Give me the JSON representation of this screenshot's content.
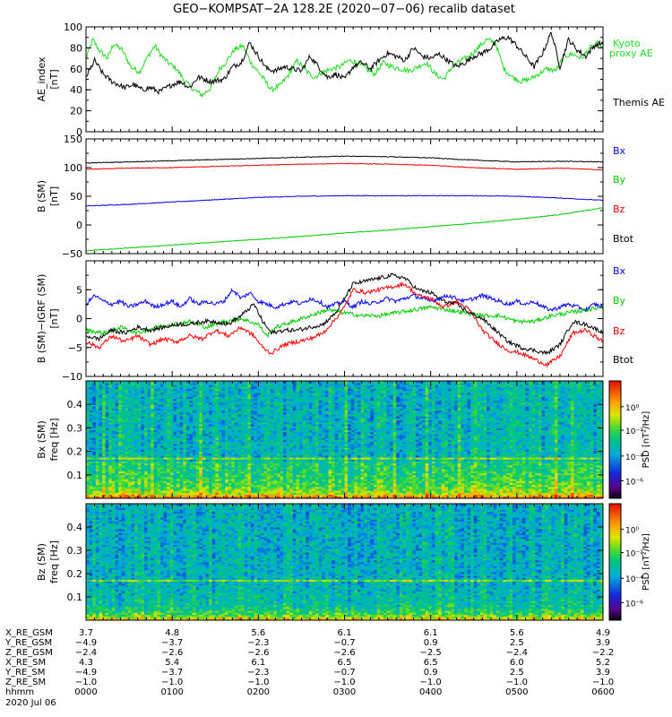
{
  "title": "GEO−KOMPSAT−2A 128.2E (2020−07−06) recalib dataset",
  "colors": {
    "black": "#000000",
    "blue": "#0000ff",
    "green": "#00cc00",
    "red": "#ff0000",
    "ae_green": "#22dd22"
  },
  "chart_data": [
    {
      "type": "line",
      "ylabel": "AE_index",
      "yunit": "[nT]",
      "xlim": [
        0,
        6
      ],
      "ylim": [
        0,
        100
      ],
      "yticks": [
        "0",
        "20",
        "40",
        "60",
        "80",
        "100"
      ],
      "yticks_v": [
        0,
        20,
        40,
        60,
        80,
        100
      ],
      "legend": [
        "Kyoto",
        "proxy AE",
        "Themis AE"
      ],
      "series": [
        {
          "name": "Kyoto proxy AE",
          "color": "#22dd22",
          "x": [
            0,
            0.08,
            0.15,
            0.25,
            0.32,
            0.42,
            0.52,
            0.62,
            0.72,
            0.8,
            0.88,
            0.95,
            1.05,
            1.15,
            1.25,
            1.35,
            1.45,
            1.55,
            1.62,
            1.72,
            1.82,
            1.92,
            2.05,
            2.15,
            2.25,
            2.35,
            2.45,
            2.55,
            2.65,
            2.75,
            2.85,
            2.95,
            3.05,
            3.15,
            3.25,
            3.35,
            3.45,
            3.55,
            3.65,
            3.75,
            3.85,
            3.95,
            4.05,
            4.15,
            4.25,
            4.35,
            4.45,
            4.55,
            4.65,
            4.75,
            4.85,
            4.95,
            5.05,
            5.15,
            5.25,
            5.35,
            5.45,
            5.55,
            5.65,
            5.75,
            5.85,
            5.95,
            6.0
          ],
          "y": [
            70,
            88,
            78,
            70,
            84,
            78,
            62,
            57,
            72,
            82,
            72,
            66,
            60,
            48,
            40,
            35,
            42,
            60,
            66,
            78,
            82,
            65,
            52,
            40,
            44,
            54,
            68,
            58,
            52,
            57,
            60,
            62,
            68,
            66,
            60,
            55,
            66,
            62,
            60,
            58,
            62,
            66,
            55,
            50,
            62,
            68,
            72,
            80,
            88,
            85,
            60,
            52,
            48,
            50,
            55,
            60,
            58,
            72,
            74,
            70,
            80,
            85,
            78
          ]
        },
        {
          "name": "Themis AE",
          "color": "#000000",
          "x": [
            0,
            0.1,
            0.2,
            0.3,
            0.45,
            0.55,
            0.65,
            0.75,
            0.85,
            1.0,
            1.1,
            1.2,
            1.3,
            1.45,
            1.6,
            1.7,
            1.8,
            1.9,
            2.0,
            2.1,
            2.2,
            2.3,
            2.4,
            2.5,
            2.6,
            2.7,
            2.8,
            2.9,
            3.0,
            3.1,
            3.2,
            3.3,
            3.4,
            3.5,
            3.6,
            3.7,
            3.8,
            3.9,
            4.0,
            4.1,
            4.2,
            4.3,
            4.4,
            4.5,
            4.6,
            4.7,
            4.8,
            4.9,
            5.0,
            5.1,
            5.2,
            5.3,
            5.4,
            5.5,
            5.6,
            5.7,
            5.8,
            5.9,
            6.0
          ],
          "y": [
            52,
            68,
            55,
            48,
            42,
            45,
            40,
            42,
            38,
            45,
            48,
            42,
            52,
            48,
            50,
            62,
            66,
            85,
            72,
            60,
            58,
            62,
            60,
            58,
            72,
            62,
            52,
            55,
            50,
            62,
            66,
            60,
            68,
            75,
            72,
            68,
            80,
            72,
            70,
            74,
            68,
            62,
            66,
            72,
            75,
            80,
            88,
            90,
            82,
            72,
            62,
            75,
            95,
            62,
            88,
            78,
            72,
            82,
            85
          ]
        }
      ]
    },
    {
      "type": "line",
      "ylabel": "B (SM)",
      "yunit": "[nT]",
      "xlim": [
        0,
        6
      ],
      "ylim": [
        -50,
        150
      ],
      "yticks": [
        "−50",
        "0",
        "50",
        "100",
        "150"
      ],
      "yticks_v": [
        -50,
        0,
        50,
        100,
        150
      ],
      "legend": [
        "Bx",
        "By",
        "Bz",
        "Btot"
      ],
      "series": [
        {
          "name": "Bx",
          "color": "#0000ff",
          "x": [
            0,
            0.5,
            1,
            1.5,
            2,
            2.5,
            3,
            3.5,
            4,
            4.5,
            5,
            5.5,
            6
          ],
          "y": [
            33,
            36,
            40,
            44,
            48,
            50,
            51,
            51,
            51,
            51,
            50,
            47,
            43
          ]
        },
        {
          "name": "By",
          "color": "#00cc00",
          "x": [
            0,
            0.5,
            1,
            1.5,
            2,
            2.5,
            3,
            3.5,
            4,
            4.5,
            5,
            5.5,
            6
          ],
          "y": [
            -45,
            -40,
            -35,
            -30,
            -25,
            -20,
            -14,
            -9,
            -3,
            3,
            10,
            18,
            30
          ]
        },
        {
          "name": "Bz",
          "color": "#ff0000",
          "x": [
            0,
            0.5,
            1,
            1.5,
            2,
            2.5,
            3,
            3.5,
            4,
            4.5,
            5,
            5.5,
            6
          ],
          "y": [
            97,
            99,
            100,
            102,
            104,
            106,
            107,
            106,
            104,
            100,
            97,
            99,
            96
          ]
        },
        {
          "name": "Btot",
          "color": "#000000",
          "x": [
            0,
            0.5,
            1,
            1.5,
            2,
            2.5,
            3,
            3.5,
            4,
            4.5,
            5,
            5.5,
            6
          ],
          "y": [
            108,
            110,
            112,
            114,
            116,
            118,
            120,
            119,
            117,
            113,
            110,
            111,
            110
          ]
        }
      ]
    },
    {
      "type": "line",
      "ylabel": "B (SM)−IGRF (SM)",
      "yunit": "[nT]",
      "xlim": [
        0,
        6
      ],
      "ylim": [
        -10,
        10
      ],
      "yticks": [
        "−10",
        "−5",
        "0",
        "5"
      ],
      "yticks_v": [
        -10,
        -5,
        0,
        5
      ],
      "legend": [
        "Bx",
        "By",
        "Bz",
        "Btot"
      ],
      "series": [
        {
          "name": "Bx",
          "color": "#0000ff",
          "x": [
            0,
            0.1,
            0.2,
            0.3,
            0.4,
            0.5,
            0.6,
            0.7,
            0.8,
            0.9,
            1.0,
            1.1,
            1.2,
            1.3,
            1.4,
            1.5,
            1.6,
            1.7,
            1.8,
            1.9,
            2.0,
            2.1,
            2.2,
            2.3,
            2.4,
            2.5,
            2.6,
            2.7,
            2.8,
            2.9,
            3.0,
            3.1,
            3.2,
            3.3,
            3.4,
            3.5,
            3.6,
            3.7,
            3.8,
            3.9,
            4.0,
            4.1,
            4.2,
            4.3,
            4.4,
            4.5,
            4.6,
            4.7,
            4.8,
            4.9,
            5.0,
            5.1,
            5.2,
            5.3,
            5.4,
            5.5,
            5.6,
            5.7,
            5.8,
            5.9,
            6.0
          ],
          "y": [
            2.5,
            4.0,
            3.0,
            2.5,
            3.0,
            2.0,
            2.5,
            3.0,
            2.0,
            2.5,
            3.0,
            2.0,
            3.5,
            2.5,
            3.0,
            2.5,
            3.0,
            5.0,
            3.5,
            4.5,
            3.0,
            2.5,
            2.0,
            2.5,
            3.0,
            2.5,
            3.5,
            3.0,
            2.0,
            2.5,
            3.0,
            2.0,
            3.0,
            2.5,
            3.0,
            3.5,
            3.0,
            3.5,
            4.0,
            3.5,
            3.0,
            3.5,
            4.0,
            3.5,
            3.0,
            3.5,
            4.0,
            3.5,
            3.0,
            2.5,
            3.0,
            2.5,
            3.0,
            2.0,
            1.5,
            2.0,
            2.5,
            2.0,
            1.5,
            2.5,
            2.0
          ]
        },
        {
          "name": "By",
          "color": "#00cc00",
          "x": [
            0,
            0.2,
            0.4,
            0.6,
            0.8,
            1.0,
            1.2,
            1.4,
            1.6,
            1.8,
            2.0,
            2.1,
            2.2,
            2.4,
            2.6,
            2.8,
            3.0,
            3.2,
            3.4,
            3.6,
            3.8,
            4.0,
            4.2,
            4.4,
            4.6,
            4.8,
            5.0,
            5.2,
            5.4,
            5.6,
            5.8,
            6.0
          ],
          "y": [
            -2.0,
            -2.5,
            -1.5,
            -2.5,
            -1.5,
            -1.0,
            -0.5,
            -1.5,
            -0.5,
            0.0,
            -1.0,
            -3.0,
            -1.5,
            -0.5,
            0.5,
            1.5,
            1.0,
            0.5,
            0.5,
            1.0,
            1.5,
            2.0,
            1.5,
            1.0,
            0.5,
            0.5,
            -0.5,
            -0.5,
            0.5,
            1.0,
            1.5,
            2.0
          ]
        },
        {
          "name": "Bz",
          "color": "#ff0000",
          "x": [
            0,
            0.15,
            0.3,
            0.45,
            0.6,
            0.75,
            0.9,
            1.05,
            1.2,
            1.35,
            1.5,
            1.65,
            1.8,
            1.95,
            2.05,
            2.15,
            2.3,
            2.45,
            2.6,
            2.75,
            2.9,
            3.0,
            3.1,
            3.25,
            3.4,
            3.55,
            3.7,
            3.85,
            4.0,
            4.15,
            4.3,
            4.45,
            4.6,
            4.75,
            4.9,
            5.05,
            5.2,
            5.35,
            5.5,
            5.65,
            5.8,
            5.95,
            6.0
          ],
          "y": [
            -4.0,
            -5.0,
            -3.0,
            -4.0,
            -3.0,
            -4.5,
            -3.5,
            -4.0,
            -3.0,
            -3.5,
            -2.0,
            -3.0,
            -1.5,
            -3.0,
            -5.0,
            -6.0,
            -4.5,
            -4.0,
            -3.5,
            -2.5,
            0.0,
            2.0,
            5.0,
            4.5,
            5.0,
            5.5,
            6.0,
            4.0,
            3.5,
            2.0,
            3.0,
            1.5,
            -2.0,
            -4.0,
            -5.5,
            -6.0,
            -7.0,
            -8.0,
            -6.5,
            -2.5,
            -2.0,
            -3.5,
            -4.0
          ]
        },
        {
          "name": "Btot",
          "color": "#000000",
          "x": [
            0,
            0.15,
            0.3,
            0.45,
            0.6,
            0.75,
            0.9,
            1.05,
            1.2,
            1.35,
            1.5,
            1.65,
            1.8,
            1.95,
            2.05,
            2.15,
            2.3,
            2.45,
            2.6,
            2.75,
            2.9,
            3.0,
            3.1,
            3.25,
            3.4,
            3.55,
            3.7,
            3.85,
            4.0,
            4.15,
            4.3,
            4.45,
            4.6,
            4.75,
            4.9,
            5.05,
            5.2,
            5.35,
            5.5,
            5.65,
            5.8,
            5.95,
            6.0
          ],
          "y": [
            -3.0,
            -3.5,
            -2.0,
            -2.5,
            -1.5,
            -2.0,
            -1.5,
            -1.0,
            -1.0,
            -0.5,
            -0.5,
            -1.0,
            0.5,
            2.5,
            -0.5,
            -2.5,
            -2.0,
            -2.0,
            -1.5,
            -1.0,
            1.0,
            3.5,
            6.0,
            6.5,
            7.0,
            7.5,
            7.0,
            5.0,
            4.5,
            3.0,
            2.5,
            1.0,
            0.0,
            -2.0,
            -4.0,
            -5.0,
            -5.5,
            -6.0,
            -4.5,
            -0.5,
            -1.0,
            -2.0,
            -2.5
          ]
        }
      ]
    },
    {
      "type": "heatmap",
      "ylabel": "Bx (SM)",
      "yunit": "freq [Hz]",
      "ylim": [
        0,
        0.5
      ],
      "yticks": [
        "0.1",
        "0.2",
        "0.3",
        "0.4"
      ],
      "yticks_v": [
        0.1,
        0.2,
        0.3,
        0.4
      ],
      "colorbar_label": "PSD [nT²/Hz]",
      "colorbar_ticks": [
        "10⁰",
        "10⁻²",
        "10⁻⁴",
        "10⁻⁶"
      ]
    },
    {
      "type": "heatmap",
      "ylabel": "Bz (SM)",
      "yunit": "freq [Hz]",
      "ylim": [
        0,
        0.5
      ],
      "yticks": [
        "0.1",
        "0.2",
        "0.3",
        "0.4"
      ],
      "yticks_v": [
        0.1,
        0.2,
        0.3,
        0.4
      ],
      "colorbar_label": "PSD [nT²/Hz]",
      "colorbar_ticks": [
        "10⁰",
        "10⁻²",
        "10⁻⁴",
        "10⁻⁶"
      ]
    }
  ],
  "ephemeris": {
    "row_labels": [
      "X_RE_GSM",
      "Y_RE_GSM",
      "Z_RE_GSM",
      "X_RE_SM",
      "Y_RE_SM",
      "Z_RE_SM",
      "hhmm",
      "2020 Jul 06"
    ],
    "columns": [
      [
        "3.7",
        "−4.9",
        "−2.4",
        "4.3",
        "−4.9",
        "−1.0",
        "0000"
      ],
      [
        "4.8",
        "−3.7",
        "−2.6",
        "5.4",
        "−3.7",
        "−1.0",
        "0100"
      ],
      [
        "5.6",
        "−2.3",
        "−2.6",
        "6.1",
        "−2.3",
        "−1.0",
        "0200"
      ],
      [
        "6.1",
        "−0.7",
        "−2.6",
        "6.5",
        "−0.7",
        "−1.0",
        "0300"
      ],
      [
        "6.1",
        "0.9",
        "−2.5",
        "6.5",
        "0.9",
        "−1.0",
        "0400"
      ],
      [
        "5.6",
        "2.5",
        "−2.4",
        "6.0",
        "2.5",
        "−1.0",
        "0500"
      ],
      [
        "4.9",
        "3.9",
        "−2.2",
        "5.2",
        "3.9",
        "−1.0",
        "0600"
      ]
    ]
  }
}
